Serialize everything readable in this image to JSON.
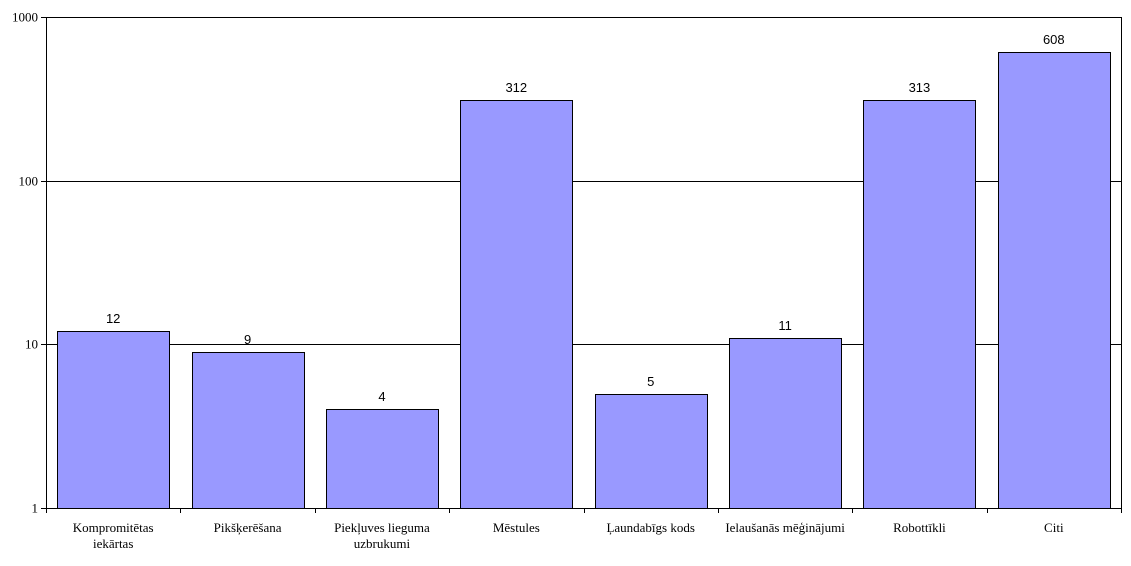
{
  "chart_data": {
    "type": "bar",
    "title": "",
    "xlabel": "",
    "ylabel": "",
    "yscale": "log",
    "ylim": [
      1,
      1000
    ],
    "yticks": [
      1,
      10,
      100,
      1000
    ],
    "grid": true,
    "legend": "none",
    "bar_color": "#9999ff",
    "categories": [
      [
        "Kompromitētas",
        "iekārtas"
      ],
      [
        "Pikšķerēšana"
      ],
      [
        "Piekļuves lieguma",
        "uzbrukumi"
      ],
      [
        "Mēstules"
      ],
      [
        "Ļaundabīgs kods"
      ],
      [
        "Ielaušanās mēģinājumi"
      ],
      [
        "Robottīkli"
      ],
      [
        "Citi"
      ]
    ],
    "values": [
      12,
      9,
      4,
      312,
      5,
      11,
      313,
      608
    ]
  }
}
